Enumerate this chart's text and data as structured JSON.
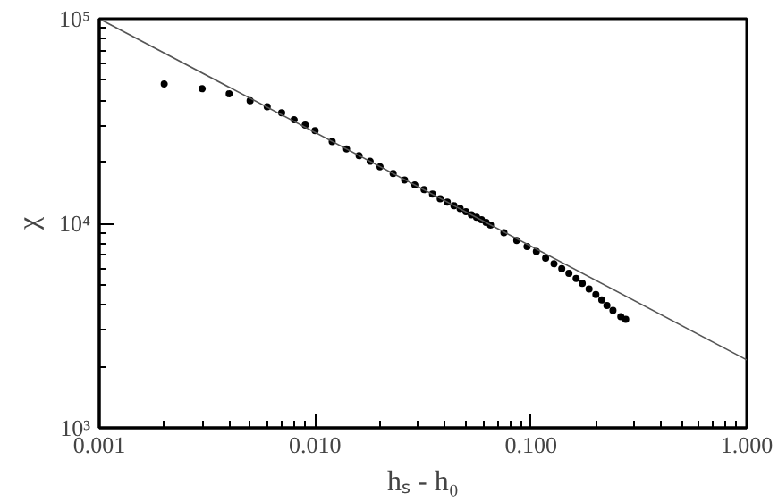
{
  "chart_data": {
    "type": "scatter",
    "xlabel": "hₛ - h₀",
    "ylabel": "χ",
    "log": "xy",
    "grid": false,
    "xlim": [
      0.001,
      1.0
    ],
    "ylim": [
      1000,
      100000
    ],
    "xticks": [
      {
        "value": 0.001,
        "label": "0.001"
      },
      {
        "value": 0.01,
        "label": "0.010"
      },
      {
        "value": 0.1,
        "label": "0.100"
      },
      {
        "value": 1.0,
        "label": "1.000"
      }
    ],
    "yticks": [
      {
        "value": 1000,
        "label": "10³"
      },
      {
        "value": 10000,
        "label": "10⁴"
      },
      {
        "value": 100000,
        "label": "10⁵"
      }
    ],
    "series": [
      {
        "marker": "circle",
        "color": "#000000",
        "x": [
          0.002,
          0.003,
          0.004,
          0.005,
          0.006,
          0.007,
          0.008,
          0.009,
          0.01,
          0.012,
          0.014,
          0.016,
          0.018,
          0.02,
          0.023,
          0.026,
          0.029,
          0.032,
          0.035,
          0.038,
          0.041,
          0.044,
          0.047,
          0.05,
          0.053,
          0.056,
          0.059,
          0.062,
          0.065,
          0.075,
          0.086,
          0.096,
          0.106,
          0.117,
          0.128,
          0.139,
          0.15,
          0.162,
          0.173,
          0.186,
          0.2,
          0.213,
          0.225,
          0.24,
          0.261,
          0.275
        ],
        "values": [
          48000,
          45500,
          43000,
          39800,
          37100,
          34700,
          32100,
          30200,
          28400,
          25100,
          23100,
          21400,
          20100,
          18900,
          17500,
          16300,
          15400,
          14600,
          13900,
          13200,
          12700,
          12200,
          11800,
          11400,
          11000,
          10700,
          10400,
          10100,
          9800,
          9000,
          8250,
          7700,
          7280,
          6750,
          6340,
          6000,
          5690,
          5370,
          5080,
          4780,
          4490,
          4220,
          3970,
          3750,
          3500,
          3390
        ]
      },
      {
        "type": "line",
        "color": "#555555",
        "x": [
          0.001,
          1.0
        ],
        "values": [
          100000,
          2150
        ]
      }
    ]
  }
}
